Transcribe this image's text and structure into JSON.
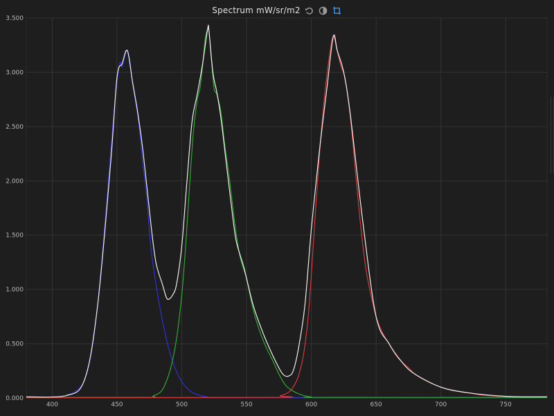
{
  "window": {
    "title": "Spectrum mW/sr/m2",
    "tools": [
      {
        "name": "reset-icon",
        "color": "#9a9a9a"
      },
      {
        "name": "contrast-icon",
        "color": "#9a9a9a"
      },
      {
        "name": "crop-icon",
        "color": "#3d8bd9"
      }
    ]
  },
  "chart_data": {
    "type": "line",
    "xlim": [
      380,
      782
    ],
    "ylim": [
      0,
      3.5
    ],
    "x_ticks": [
      400,
      450,
      500,
      550,
      600,
      650,
      700,
      750
    ],
    "x_tick_labels": [
      "400",
      "450",
      "500",
      "550",
      "600",
      "650",
      "700",
      "750"
    ],
    "y_ticks": [
      0,
      0.5,
      1,
      1.5,
      2,
      2.5,
      3,
      3.5
    ],
    "y_tick_labels": [
      "0.000",
      "0.500",
      "1.000",
      "1.500",
      "2.000",
      "2.500",
      "3.000",
      "3.500"
    ],
    "grid": true,
    "background": "#1e1e1e",
    "grid_color": "#333333",
    "series": [
      {
        "color": "#3232e6",
        "x": [
          380,
          400,
          410,
          420,
          425,
          430,
          435,
          440,
          443,
          446,
          449,
          452,
          454,
          456,
          458,
          460,
          462,
          464,
          466,
          468,
          470,
          473,
          476,
          480,
          485,
          490,
          495,
          500,
          505,
          510,
          520,
          540,
          782
        ],
        "y": [
          0.01,
          0.01,
          0.02,
          0.08,
          0.17,
          0.4,
          0.85,
          1.5,
          1.95,
          2.4,
          2.8,
          3.08,
          3.05,
          3.15,
          3.2,
          3.1,
          2.9,
          2.75,
          2.6,
          2.4,
          2.15,
          1.85,
          1.4,
          1.05,
          0.72,
          0.45,
          0.27,
          0.15,
          0.08,
          0.04,
          0.01,
          0.005,
          0.005
        ]
      },
      {
        "color": "#32b432",
        "x": [
          380,
          470,
          478,
          484,
          488,
          492,
          496,
          500,
          503,
          506,
          509,
          512,
          514,
          516,
          518,
          520,
          521,
          523,
          525,
          527,
          530,
          533,
          537,
          541,
          545,
          550,
          555,
          560,
          565,
          570,
          575,
          580,
          585,
          590,
          595,
          600,
          610,
          782
        ],
        "y": [
          0.005,
          0.005,
          0.02,
          0.06,
          0.15,
          0.3,
          0.55,
          0.95,
          1.4,
          1.95,
          2.45,
          2.75,
          2.85,
          3.05,
          3.3,
          3.4,
          3.38,
          3.1,
          2.85,
          2.8,
          2.65,
          2.35,
          2.0,
          1.6,
          1.3,
          1.1,
          0.82,
          0.62,
          0.47,
          0.35,
          0.22,
          0.12,
          0.07,
          0.04,
          0.02,
          0.01,
          0.005,
          0.005
        ]
      },
      {
        "color": "#e63c3c",
        "x": [
          380,
          570,
          576,
          582,
          586,
          590,
          594,
          598,
          602,
          606,
          610,
          614,
          617,
          620,
          623,
          626,
          630,
          634,
          638,
          642,
          646,
          650,
          655,
          660,
          665,
          670,
          675,
          680,
          690,
          700,
          710,
          720,
          730,
          740,
          750,
          760,
          770,
          782
        ],
        "y": [
          0.005,
          0.005,
          0.02,
          0.05,
          0.1,
          0.2,
          0.4,
          0.8,
          1.5,
          2.2,
          2.75,
          3.15,
          3.33,
          3.2,
          3.05,
          2.95,
          2.6,
          2.1,
          1.6,
          1.2,
          0.95,
          0.75,
          0.6,
          0.5,
          0.4,
          0.33,
          0.28,
          0.22,
          0.15,
          0.1,
          0.07,
          0.05,
          0.03,
          0.02,
          0.015,
          0.01,
          0.01,
          0.01
        ]
      },
      {
        "color": "#f0f0f0",
        "x": [
          380,
          410,
          425,
          435,
          445,
          450,
          454,
          458,
          462,
          466,
          470,
          476,
          480,
          485,
          488,
          490,
          493,
          496,
          500,
          504,
          508,
          512,
          516,
          520,
          521,
          524,
          527,
          530,
          534,
          538,
          542,
          548,
          555,
          562,
          568,
          574,
          578,
          582,
          586,
          590,
          595,
          600,
          606,
          612,
          617,
          620,
          625,
          630,
          640,
          650,
          660,
          670,
          680,
          700,
          720,
          750,
          782
        ],
        "y": [
          0.01,
          0.02,
          0.17,
          0.85,
          2.15,
          2.95,
          3.08,
          3.2,
          2.91,
          2.63,
          2.28,
          1.62,
          1.25,
          1.05,
          0.93,
          0.91,
          0.95,
          1.05,
          1.4,
          2.0,
          2.55,
          2.8,
          3.07,
          3.4,
          3.38,
          3.0,
          2.82,
          2.6,
          2.2,
          1.8,
          1.45,
          1.2,
          0.86,
          0.62,
          0.45,
          0.3,
          0.22,
          0.2,
          0.25,
          0.45,
          0.85,
          1.55,
          2.25,
          2.85,
          3.33,
          3.2,
          3.0,
          2.62,
          1.6,
          0.75,
          0.5,
          0.33,
          0.22,
          0.1,
          0.05,
          0.015,
          0.01
        ]
      }
    ]
  }
}
